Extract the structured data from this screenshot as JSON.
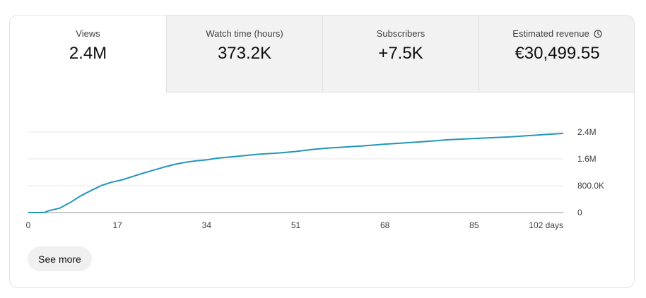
{
  "tabs": [
    {
      "label": "Views",
      "value": "2.4M",
      "active": true
    },
    {
      "label": "Watch time (hours)",
      "value": "373.2K",
      "active": false
    },
    {
      "label": "Subscribers",
      "value": "+7.5K",
      "active": false
    },
    {
      "label": "Estimated revenue",
      "value": "€30,499.55",
      "active": false,
      "icon": "clock-icon"
    }
  ],
  "see_more_label": "See more",
  "colors": {
    "line": "#2196b9",
    "grid": "#e5e5e5",
    "axis": "#909090",
    "active_tab": "#ffffff",
    "inactive_tab": "#f2f2f2"
  },
  "chart_data": {
    "type": "line",
    "title": "",
    "xlabel": "",
    "ylabel": "",
    "x_ticks": [
      0,
      17,
      34,
      51,
      68,
      85,
      102
    ],
    "x_tick_labels": [
      "0",
      "17",
      "34",
      "51",
      "68",
      "85",
      "102 days"
    ],
    "y_ticks": [
      0,
      800000,
      1600000,
      2400000
    ],
    "y_tick_labels": [
      "0",
      "800.0K",
      "1.6M",
      "2.4M"
    ],
    "ylim": [
      0,
      2400000
    ],
    "xlim": [
      0,
      102
    ],
    "grid": true,
    "series": [
      {
        "x": [
          0,
          3,
          4,
          6,
          8,
          10,
          12,
          14,
          16,
          18,
          20,
          22,
          24,
          26,
          28,
          30,
          32,
          34,
          36,
          38,
          40,
          44,
          48,
          51,
          54,
          57,
          60,
          64,
          68,
          72,
          76,
          80,
          84,
          88,
          92,
          96,
          98,
          100,
          102
        ],
        "y": [
          0,
          0,
          60000,
          130000,
          300000,
          500000,
          660000,
          810000,
          910000,
          980000,
          1080000,
          1180000,
          1270000,
          1360000,
          1440000,
          1500000,
          1540000,
          1570000,
          1620000,
          1650000,
          1680000,
          1740000,
          1780000,
          1820000,
          1880000,
          1920000,
          1950000,
          1990000,
          2040000,
          2080000,
          2120000,
          2170000,
          2200000,
          2230000,
          2260000,
          2300000,
          2320000,
          2340000,
          2360000
        ]
      }
    ]
  }
}
